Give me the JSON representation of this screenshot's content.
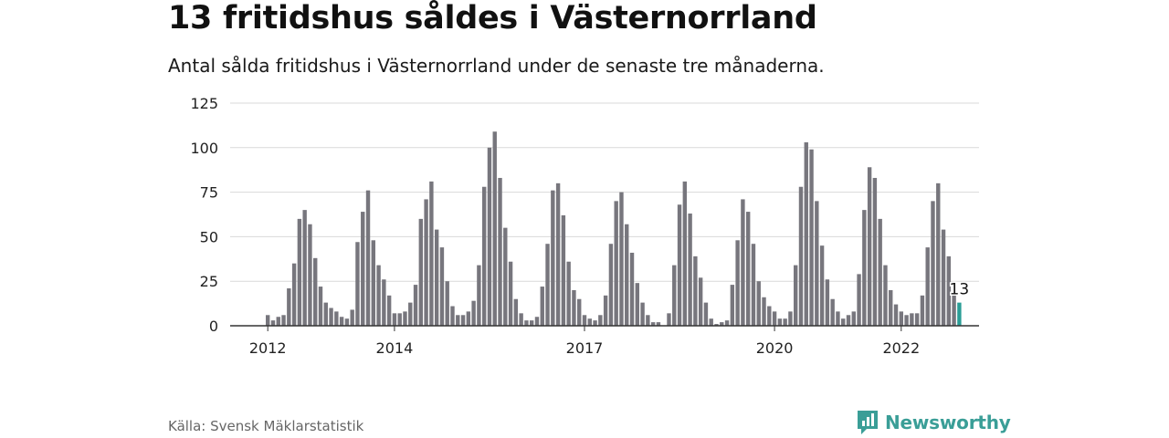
{
  "header": {
    "title": "13 fritidshus såldes i Västernorrland",
    "subtitle": "Antal sålda fritidshus i Västernorrland under de senaste tre månaderna."
  },
  "footer": {
    "source": "Källa: Svensk Mäklarstatistik",
    "brand": "Newsworthy"
  },
  "colors": {
    "bar": "#77767d",
    "highlight": "#2a9d96",
    "grid": "#d9d9d9",
    "axis": "#333333",
    "brand": "#3a9e97"
  },
  "chart_data": {
    "type": "bar",
    "title": "13 fritidshus såldes i Västernorrland",
    "subtitle": "Antal sålda fritidshus i Västernorrland under de senaste tre månaderna.",
    "xlabel": "",
    "ylabel": "",
    "ylim": [
      0,
      125
    ],
    "yticks": [
      0,
      25,
      50,
      75,
      100,
      125
    ],
    "grid": true,
    "start": "2012-01",
    "x_tick_labels": [
      {
        "label": "2012",
        "month": "2012-01"
      },
      {
        "label": "2014",
        "month": "2014-01"
      },
      {
        "label": "2017",
        "month": "2017-01"
      },
      {
        "label": "2020",
        "month": "2020-01"
      },
      {
        "label": "2022",
        "month": "2022-01"
      }
    ],
    "values": [
      6,
      3,
      5,
      6,
      21,
      35,
      60,
      65,
      57,
      38,
      22,
      13,
      10,
      8,
      5,
      4,
      9,
      47,
      64,
      76,
      48,
      34,
      26,
      17,
      7,
      7,
      8,
      13,
      23,
      60,
      71,
      81,
      54,
      44,
      25,
      11,
      6,
      6,
      8,
      14,
      34,
      78,
      100,
      109,
      83,
      55,
      36,
      15,
      7,
      3,
      3,
      5,
      22,
      46,
      76,
      80,
      62,
      36,
      20,
      15,
      6,
      4,
      3,
      6,
      17,
      46,
      70,
      75,
      57,
      41,
      24,
      13,
      6,
      2,
      2,
      0,
      7,
      34,
      68,
      81,
      63,
      39,
      27,
      13,
      4,
      1,
      2,
      3,
      23,
      48,
      71,
      64,
      46,
      25,
      16,
      11,
      8,
      4,
      4,
      8,
      34,
      78,
      103,
      99,
      70,
      45,
      26,
      15,
      8,
      4,
      6,
      8,
      29,
      65,
      89,
      83,
      60,
      34,
      20,
      12,
      8,
      6,
      7,
      7,
      17,
      44,
      70,
      80,
      54,
      39,
      17,
      13
    ],
    "highlight_label": "13"
  }
}
